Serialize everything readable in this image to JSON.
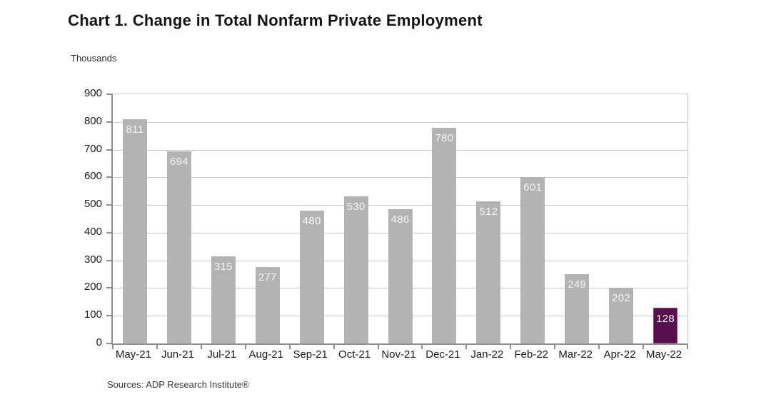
{
  "header": {
    "title": "Chart 1. Change in Total Nonfarm Private Employment"
  },
  "chart_data": {
    "type": "bar",
    "title": "Chart 1. Change in Total Nonfarm Private Employment",
    "ylabel": "Thousands",
    "xlabel": "",
    "categories": [
      "May-21",
      "Jun-21",
      "Jul-21",
      "Aug-21",
      "Sep-21",
      "Oct-21",
      "Nov-21",
      "Dec-21",
      "Jan-22",
      "Feb-22",
      "Mar-22",
      "Apr-22",
      "May-22"
    ],
    "values": [
      811,
      694,
      315,
      277,
      480,
      530,
      486,
      780,
      512,
      601,
      249,
      202,
      128
    ],
    "ylim": [
      0,
      900
    ],
    "ytick_interval": 100,
    "grid": "horizontal",
    "legend": "none",
    "highlight_index": 12,
    "colors": {
      "bar_default": "#b3b3b3",
      "bar_highlight": "#570f4e",
      "bar_highlight_border": "#a23389",
      "gridline": "#c9c9c9",
      "axis": "#8f8f8f",
      "value_label": "#f5f3f5",
      "text": "#1a1a1a"
    }
  },
  "footer": {
    "source": "Sources: ADP Research Institute®"
  }
}
